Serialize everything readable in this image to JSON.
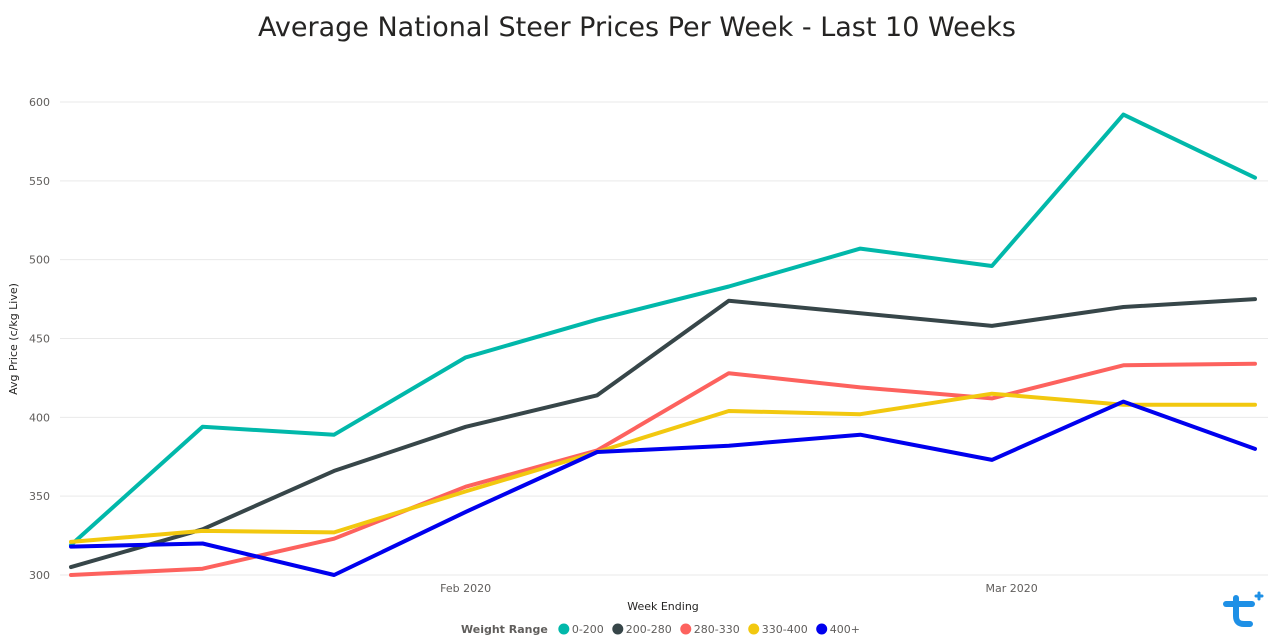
{
  "chart_data": {
    "type": "line",
    "title": "Average National Steer Prices Per Week - Last 10 Weeks",
    "xlabel": "Week Ending",
    "ylabel": "Avg Price (c/kg Live)",
    "ylim": [
      300,
      600
    ],
    "yticks": [
      300,
      350,
      400,
      450,
      500,
      550,
      600
    ],
    "x_tick_labels": [
      {
        "label": "Feb 2020",
        "at_week": 3.0
      },
      {
        "label": "Mar 2020",
        "at_week": 7.15
      }
    ],
    "x": [
      0,
      1,
      2,
      3,
      4,
      5,
      6,
      7,
      8,
      9
    ],
    "grid": true,
    "legend": {
      "title": "Weight Range",
      "position": "bottom-center"
    },
    "series": [
      {
        "name": "0-200",
        "color": "#01b8aa",
        "values": [
          319,
          394,
          389,
          438,
          462,
          483,
          507,
          496,
          592,
          552
        ]
      },
      {
        "name": "200-280",
        "color": "#374649",
        "values": [
          305,
          329,
          366,
          394,
          414,
          474,
          466,
          458,
          470,
          475
        ]
      },
      {
        "name": "280-330",
        "color": "#fd625e",
        "values": [
          300,
          304,
          323,
          356,
          379,
          428,
          419,
          412,
          433,
          434
        ]
      },
      {
        "name": "330-400",
        "color": "#f2c80f",
        "values": [
          321,
          328,
          327,
          353,
          378,
          404,
          402,
          415,
          408,
          408
        ]
      },
      {
        "name": "400+",
        "color": "#0000ee",
        "values": [
          318,
          320,
          300,
          340,
          378,
          382,
          389,
          373,
          410,
          380
        ]
      }
    ]
  },
  "logo": {
    "name": "brand-logo-icon",
    "color": "#1e90e6"
  }
}
